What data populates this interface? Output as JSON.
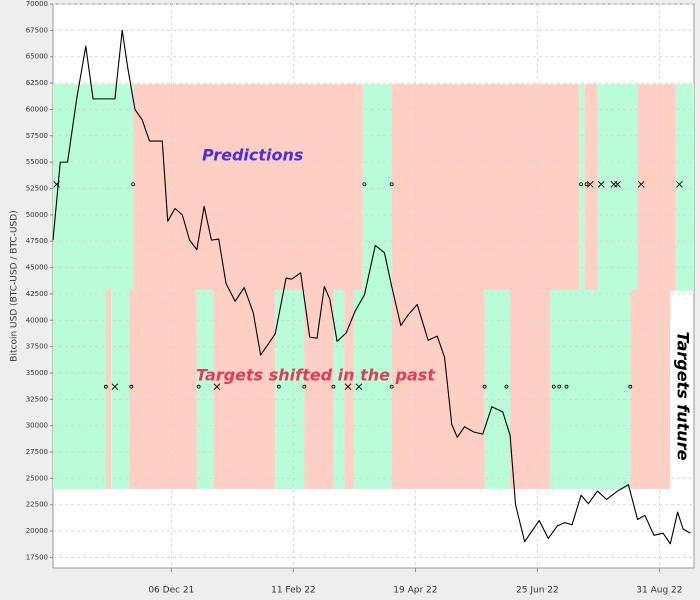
{
  "chart_data": {
    "type": "line",
    "y_label": "Bitcoin USD (BTC-USD / BTC-USD)",
    "annotations": {
      "predictions": "Predictions",
      "targets_past": "Targets shifted in the past",
      "targets_future": "Targets future"
    },
    "color": "#000000",
    "x": [
      "2021-10-02",
      "2021-10-06",
      "2021-10-10",
      "2021-10-15",
      "2021-10-20",
      "2021-10-24",
      "2021-10-28",
      "2021-11-01",
      "2021-11-05",
      "2021-11-09",
      "2021-11-12",
      "2021-11-16",
      "2021-11-20",
      "2021-11-24",
      "2021-11-28",
      "2021-12-01",
      "2021-12-04",
      "2021-12-08",
      "2021-12-12",
      "2021-12-16",
      "2021-12-20",
      "2021-12-24",
      "2021-12-28",
      "2022-01-01",
      "2022-01-05",
      "2022-01-10",
      "2022-01-15",
      "2022-01-20",
      "2022-01-24",
      "2022-01-28",
      "2022-02-01",
      "2022-02-07",
      "2022-02-10",
      "2022-02-15",
      "2022-02-20",
      "2022-02-24",
      "2022-02-28",
      "2022-03-03",
      "2022-03-07",
      "2022-03-12",
      "2022-03-17",
      "2022-03-22",
      "2022-03-28",
      "2022-04-02",
      "2022-04-06",
      "2022-04-11",
      "2022-04-15",
      "2022-04-20",
      "2022-04-26",
      "2022-05-01",
      "2022-05-05",
      "2022-05-09",
      "2022-05-12",
      "2022-05-16",
      "2022-05-21",
      "2022-05-26",
      "2022-05-31",
      "2022-06-06",
      "2022-06-10",
      "2022-06-13",
      "2022-06-18",
      "2022-06-22",
      "2022-06-26",
      "2022-07-01",
      "2022-07-06",
      "2022-07-10",
      "2022-07-14",
      "2022-07-19",
      "2022-07-23",
      "2022-07-28",
      "2022-08-02",
      "2022-08-08",
      "2022-08-14",
      "2022-08-19",
      "2022-08-23",
      "2022-08-28",
      "2022-09-02",
      "2022-09-06",
      "2022-09-10",
      "2022-09-13",
      "2022-09-17"
    ],
    "values": [
      47600,
      55000,
      55000,
      61000,
      66000,
      61000,
      61000,
      61000,
      61000,
      67500,
      64000,
      60000,
      59000,
      57000,
      57000,
      57000,
      49400,
      50600,
      50000,
      47600,
      46700,
      50800,
      47600,
      47700,
      43500,
      41800,
      43100,
      40700,
      36700,
      37700,
      38700,
      44000,
      43900,
      44500,
      38400,
      38300,
      43200,
      42000,
      38000,
      38800,
      40900,
      42400,
      47100,
      46400,
      43200,
      39500,
      40500,
      41500,
      38100,
      38500,
      36500,
      30100,
      28900,
      29900,
      29400,
      29200,
      31800,
      31300,
      29100,
      22500,
      19000,
      20000,
      21000,
      19300,
      20500,
      20800,
      20600,
      23400,
      22600,
      23800,
      23000,
      23800,
      24400,
      21100,
      21500,
      19600,
      19800,
      18800,
      21800,
      20200,
      19800
    ],
    "xlim": [
      "2021-10-02",
      "2022-09-19"
    ],
    "xticks": [
      {
        "value": "2021-12-06",
        "label": "06 Dec 21"
      },
      {
        "value": "2022-02-11",
        "label": "11 Feb 22"
      },
      {
        "value": "2022-04-19",
        "label": "19 Apr 22"
      },
      {
        "value": "2022-06-25",
        "label": "25 Jun 22"
      },
      {
        "value": "2022-08-31",
        "label": "31 Aug 22"
      }
    ],
    "ylim": [
      16500,
      70000
    ],
    "yticks": [
      17500,
      20000,
      22500,
      25000,
      27500,
      30000,
      32500,
      35000,
      37500,
      40000,
      42500,
      45000,
      47500,
      50000,
      52500,
      55000,
      57500,
      60000,
      62500,
      65000,
      67500,
      70000
    ],
    "grid": true,
    "up_color": "#b8fcd8",
    "down_color": "#fecfc2",
    "prediction_range": [
      42800,
      62400
    ],
    "prediction_regions": [
      {
        "start": "2021-10-02",
        "end": "2021-11-15",
        "color": "up"
      },
      {
        "start": "2021-11-15",
        "end": "2022-03-21",
        "color": "down"
      },
      {
        "start": "2022-03-21",
        "end": "2022-04-06",
        "color": "up"
      },
      {
        "start": "2022-04-06",
        "end": "2022-07-18",
        "color": "down"
      },
      {
        "start": "2022-07-18",
        "end": "2022-07-21",
        "color": "up"
      },
      {
        "start": "2022-07-21",
        "end": "2022-07-28",
        "color": "down"
      },
      {
        "start": "2022-07-28",
        "end": "2022-08-19",
        "color": "up"
      },
      {
        "start": "2022-08-19",
        "end": "2022-09-09",
        "color": "down"
      },
      {
        "start": "2022-09-09",
        "end": "2022-09-19",
        "color": "up"
      }
    ],
    "target_range": [
      24000,
      42900
    ],
    "target_regions": [
      {
        "start": "2021-10-02",
        "end": "2021-10-31",
        "color": "up"
      },
      {
        "start": "2021-10-31",
        "end": "2021-11-03",
        "color": "down"
      },
      {
        "start": "2021-11-03",
        "end": "2021-11-13",
        "color": "up"
      },
      {
        "start": "2021-11-13",
        "end": "2021-12-20",
        "color": "down"
      },
      {
        "start": "2021-12-20",
        "end": "2021-12-29",
        "color": "up"
      },
      {
        "start": "2021-12-29",
        "end": "2022-02-01",
        "color": "down"
      },
      {
        "start": "2022-02-01",
        "end": "2022-02-17",
        "color": "up"
      },
      {
        "start": "2022-02-17",
        "end": "2022-03-05",
        "color": "down"
      },
      {
        "start": "2022-03-05",
        "end": "2022-03-11",
        "color": "up"
      },
      {
        "start": "2022-03-11",
        "end": "2022-03-16",
        "color": "down"
      },
      {
        "start": "2022-03-16",
        "end": "2022-04-06",
        "color": "up"
      },
      {
        "start": "2022-04-06",
        "end": "2022-05-27",
        "color": "down"
      },
      {
        "start": "2022-05-27",
        "end": "2022-06-10",
        "color": "up"
      },
      {
        "start": "2022-06-10",
        "end": "2022-07-02",
        "color": "down"
      },
      {
        "start": "2022-07-02",
        "end": "2022-08-15",
        "color": "up"
      },
      {
        "start": "2022-08-15",
        "end": "2022-09-06",
        "color": "down"
      }
    ],
    "markers": [
      {
        "y": 52900,
        "dots": [
          "2021-11-15",
          "2022-03-22",
          "2022-04-06",
          "2022-07-19",
          "2022-07-22"
        ],
        "crosses": [
          "2021-10-04",
          "2022-07-24",
          "2022-07-30",
          "2022-08-06",
          "2022-08-08",
          "2022-08-21",
          "2022-09-11"
        ]
      },
      {
        "y": 33700,
        "dots": [
          "2021-10-31",
          "2021-11-14",
          "2021-12-21",
          "2022-02-03",
          "2022-02-17",
          "2022-03-05",
          "2022-04-06",
          "2022-05-27",
          "2022-06-08",
          "2022-07-04",
          "2022-07-07",
          "2022-07-11",
          "2022-08-15"
        ],
        "crosses": [
          "2021-11-05",
          "2021-12-31",
          "2022-03-13",
          "2022-03-19"
        ]
      }
    ]
  }
}
